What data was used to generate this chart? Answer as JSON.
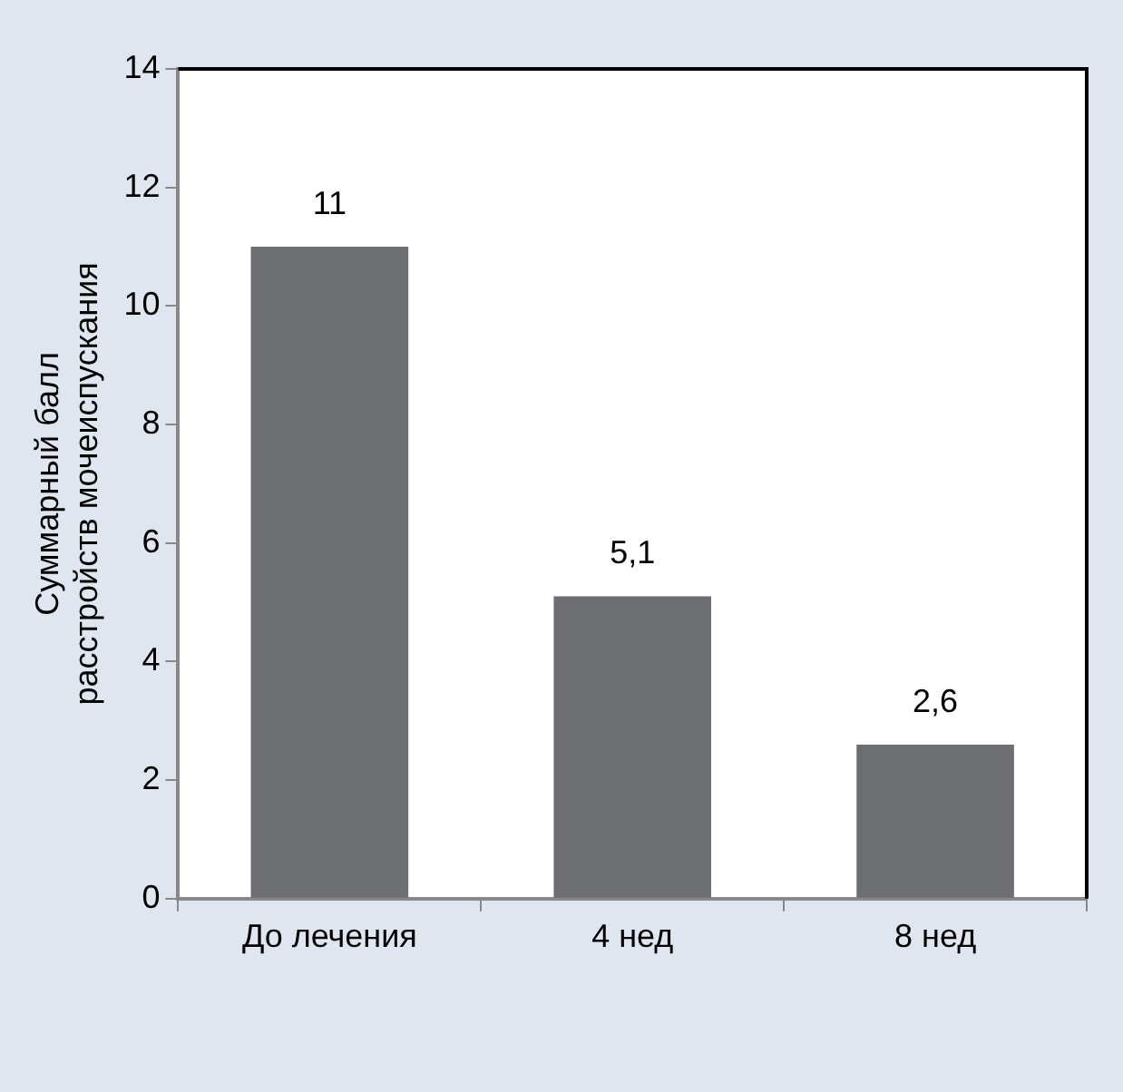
{
  "chart_data": {
    "type": "bar",
    "ylabel": "Суммарный балл расстройств мочеиспускания",
    "categories": [
      "До лечения",
      "4 нед",
      "8 нед"
    ],
    "values": [
      11,
      5.1,
      2.6
    ],
    "value_labels": [
      "11",
      "5,1",
      "2,6"
    ],
    "color": "#6d6e71",
    "ylim": [
      0,
      14
    ],
    "yticks": [
      0,
      2,
      4,
      6,
      8,
      10,
      12,
      14
    ],
    "grid": false,
    "legend": false
  }
}
